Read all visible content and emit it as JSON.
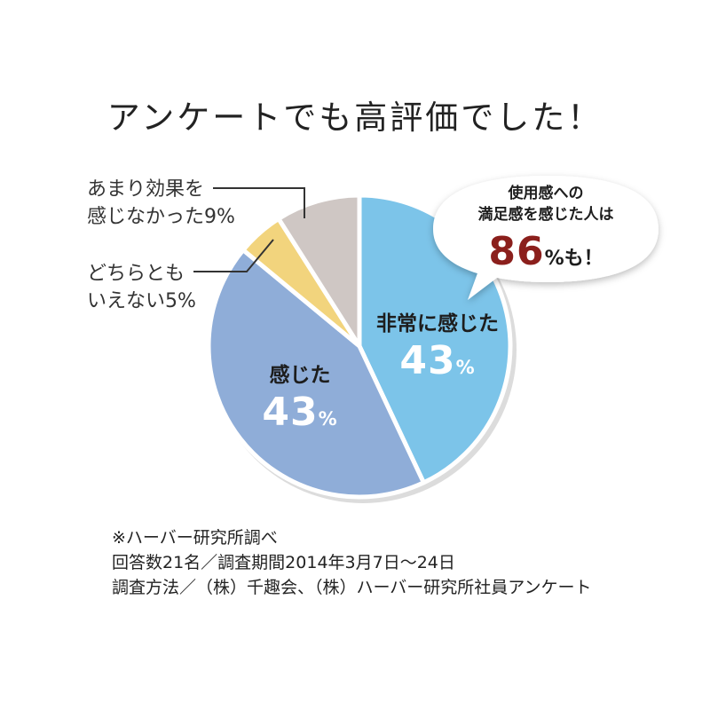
{
  "title": "アンケートでも高評価でした！",
  "chart_data": {
    "type": "pie",
    "slices": [
      {
        "name": "非常に感じた",
        "value": 43,
        "color": "#7cc4e9"
      },
      {
        "name": "感じた",
        "value": 43,
        "color": "#8fadd8"
      },
      {
        "name": "どちらともいえない",
        "value": 5,
        "color": "#f2d47d"
      },
      {
        "name": "あまり効果を感じなかった",
        "value": 9,
        "color": "#cfc7c4"
      }
    ],
    "start": "12 o'clock, clockwise",
    "slice_border_color": "#ffffff",
    "shadow_color": "#dcdcdc"
  },
  "labels": {
    "very": {
      "name": "非常に感じた",
      "pct": "43",
      "unit": "%"
    },
    "felt": {
      "name": "感じた",
      "pct": "43",
      "unit": "%"
    },
    "neither": {
      "line1": "どちらとも",
      "line2": "いえない5%"
    },
    "not_effective": {
      "line1": "あまり効果を",
      "line2": "感じなかった9%"
    }
  },
  "bubble": {
    "line1": "使用感への",
    "line2": "満足感を感じた人は",
    "number": "86",
    "suffix": "%も！"
  },
  "notes": [
    "※ハーバー研究所調べ",
    "回答数21名／調査期間2014年3月7日〜24日",
    "調査方法／（株）千趣会、（株）ハーバー研究所社員アンケート"
  ]
}
